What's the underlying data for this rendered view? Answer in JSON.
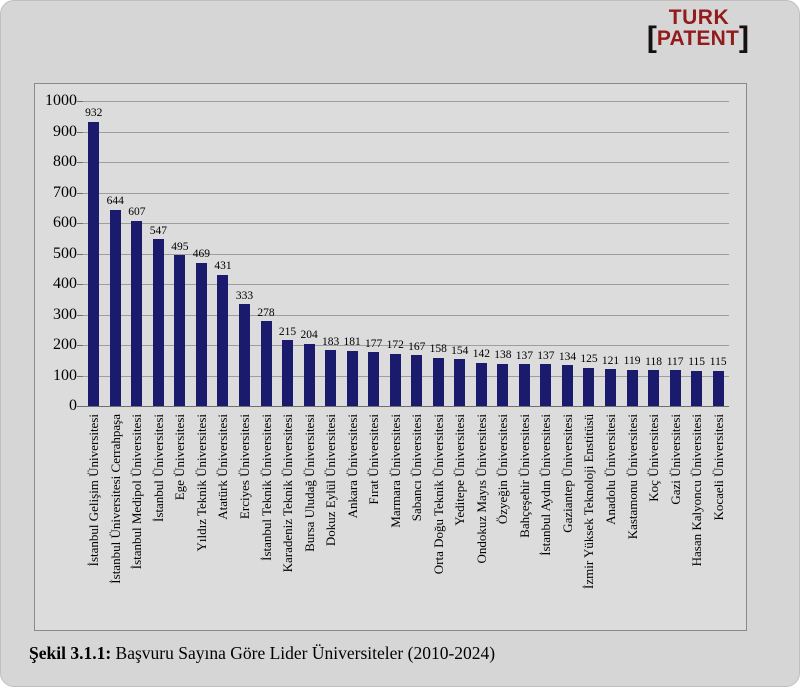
{
  "logo": {
    "line1": "TURK",
    "bracket_left": "[",
    "word": "PATENT",
    "bracket_right": "]",
    "text_color": "#931b1b",
    "bracket_color": "#161010"
  },
  "caption": {
    "label": "Şekil 3.1.1:",
    "text": " Başvuru Sayına Göre Lider Üniversiteler (2010-2024)"
  },
  "chart_data": {
    "type": "bar",
    "title": "Başvuru Sayına Göre Lider Üniversiteler (2010-2024)",
    "xlabel": "",
    "ylabel": "",
    "ylim": [
      0,
      1000
    ],
    "ytick_interval": 100,
    "yticks": [
      0,
      100,
      200,
      300,
      400,
      500,
      600,
      700,
      800,
      900,
      1000
    ],
    "grid": true,
    "legend": false,
    "bar_color": "#1b1b6e",
    "value_labels": true,
    "categories": [
      "İstanbul Gelişim Üniversitesi",
      "İstanbul Üniversitesi Cerrahpaşa",
      "İstanbul Medipol Üniversitesi",
      "İstanbul Üniversitesi",
      "Ege Üniversitesi",
      "Yıldız Teknik Üniversitesi",
      "Atatürk Üniversitesi",
      "Erciyes Üniversitesi",
      "İstanbul Teknik Üniversitesi",
      "Karadeniz Teknik Üniversitesi",
      "Bursa Uludağ Üniversitesi",
      "Dokuz Eylül Üniversitesi",
      "Ankara Üniversitesi",
      "Fırat Üniversitesi",
      "Marmara Üniversitesi",
      "Sabancı Üniversitesi",
      "Orta Doğu Teknik Üniversitesi",
      "Yeditepe Üniversitesi",
      "Ondokuz Mayıs Üniversitesi",
      "Özyeğin Üniversitesi",
      "Bahçeşehir Üniversitesi",
      "İstanbul Aydın Üniversitesi",
      "Gaziantep Üniversitesi",
      "İzmir Yüksek Teknoloji Enstitüsü",
      "Anadolu Üniversitesi",
      "Kastamonu Üniversitesi",
      "Koç Üniversitesi",
      "Gazi Üniversitesi",
      "Hasan Kalyoncu Üniversitesi",
      "Kocaeli Üniversitesi"
    ],
    "values": [
      932,
      644,
      607,
      547,
      495,
      469,
      431,
      333,
      278,
      215,
      204,
      183,
      181,
      177,
      172,
      167,
      158,
      154,
      142,
      138,
      137,
      137,
      134,
      125,
      121,
      119,
      118,
      117,
      115,
      115
    ]
  },
  "colors": {
    "page_background": "#d6d6d6",
    "frame_background": "#dcdcdc",
    "frame_border": "#8a8a8a",
    "grid_line": "#9e9e9e",
    "axis_line": "#6f6f6f",
    "bar": "#1b1b6e"
  }
}
